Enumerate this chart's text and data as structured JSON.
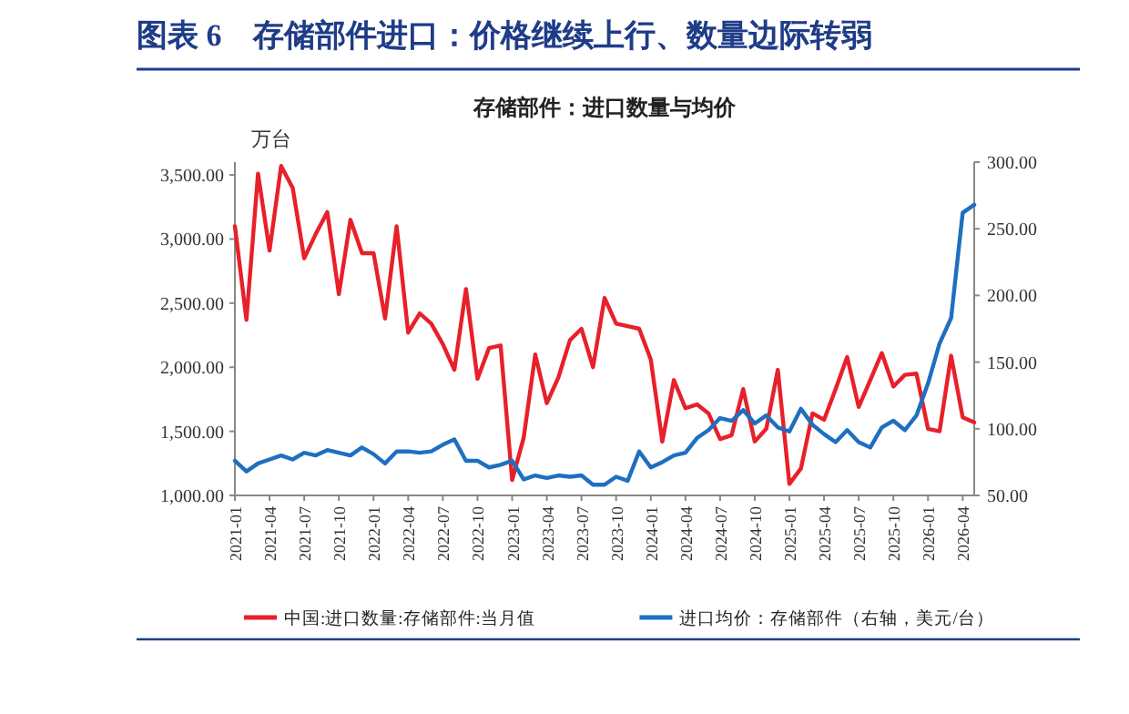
{
  "chart_data": {
    "type": "line",
    "title": "图表 6　存储部件进口：价格继续上行、数量边际转弱",
    "subtitle": "存储部件：进口数量与均价",
    "ylabel": "万台",
    "x": [
      "2021-01",
      "2021-02",
      "2021-03",
      "2021-04",
      "2021-05",
      "2021-06",
      "2021-07",
      "2021-08",
      "2021-09",
      "2021-10",
      "2021-11",
      "2021-12",
      "2022-01",
      "2022-02",
      "2022-03",
      "2022-04",
      "2022-05",
      "2022-06",
      "2022-07",
      "2022-08",
      "2022-09",
      "2022-10",
      "2022-11",
      "2022-12",
      "2023-01",
      "2023-02",
      "2023-03",
      "2023-04",
      "2023-05",
      "2023-06",
      "2023-07",
      "2023-08",
      "2023-09",
      "2023-10",
      "2023-11",
      "2023-12",
      "2024-01",
      "2024-02",
      "2024-03",
      "2024-04",
      "2024-05",
      "2024-06",
      "2024-07",
      "2024-08",
      "2024-09",
      "2024-10",
      "2024-11",
      "2024-12",
      "2025-01",
      "2025-02",
      "2025-03",
      "2025-04",
      "2025-05",
      "2025-06",
      "2025-07",
      "2025-08",
      "2025-09",
      "2025-10",
      "2025-11",
      "2025-12",
      "2026-01",
      "2026-02",
      "2026-03",
      "2026-04",
      "2026-05"
    ],
    "xlim": [
      "2021-01",
      "2026-05"
    ],
    "xticks": [
      "2021-01",
      "2021-04",
      "2021-07",
      "2021-10",
      "2022-01",
      "2022-04",
      "2022-07",
      "2022-10",
      "2023-01",
      "2023-04",
      "2023-07",
      "2023-10",
      "2024-01",
      "2024-04",
      "2024-07",
      "2024-10",
      "2025-01",
      "2025-04",
      "2025-07",
      "2025-10",
      "2026-01",
      "2026-04"
    ],
    "ylim": [
      1000,
      3600
    ],
    "yticks": [
      {
        "value": 1000,
        "label": "1,000.00"
      },
      {
        "value": 1500,
        "label": "1,500.00"
      },
      {
        "value": 2000,
        "label": "2,000.00"
      },
      {
        "value": 2500,
        "label": "2,500.00"
      },
      {
        "value": 3000,
        "label": "3,000.00"
      },
      {
        "value": 3500,
        "label": "3,500.00"
      }
    ],
    "y2lim": [
      50,
      300
    ],
    "y2ticks": [
      {
        "value": 50,
        "label": "50.00"
      },
      {
        "value": 100,
        "label": "100.00"
      },
      {
        "value": 150,
        "label": "150.00"
      },
      {
        "value": 200,
        "label": "200.00"
      },
      {
        "value": 250,
        "label": "250.00"
      },
      {
        "value": 300,
        "label": "300.00"
      }
    ],
    "legend": "bottom",
    "series": [
      {
        "name": "中国:进口数量:存储部件:当月值",
        "color": "#e8202a",
        "values": [
          3100,
          2370,
          3510,
          2910,
          3570,
          3400,
          2850,
          3040,
          3210,
          2570,
          3150,
          2890,
          2890,
          2380,
          3100,
          2270,
          2420,
          2340,
          2180,
          1980,
          2610,
          1910,
          2150,
          2170,
          1120,
          1450,
          2100,
          1720,
          1920,
          2210,
          2300,
          2000,
          2540,
          2340,
          2320,
          2300,
          2060,
          1420,
          1900,
          1680,
          1710,
          1640,
          1440,
          1470,
          1830,
          1420,
          1520,
          1980,
          1090,
          1210,
          1640,
          1590,
          1830,
          2080,
          1690,
          1900,
          2110,
          1850,
          1940,
          1950,
          1520,
          1500,
          2090,
          1610,
          1570
        ]
      },
      {
        "name": "进口均价：存储部件（右轴，美元/台）",
        "color": "#1f6fc0",
        "axis": "y2",
        "values": [
          76,
          68,
          74,
          77,
          80,
          77,
          82,
          80,
          84,
          82,
          80,
          86,
          81,
          74,
          83,
          83,
          82,
          83,
          88,
          92,
          76,
          76,
          71,
          73,
          76,
          62,
          65,
          63,
          65,
          64,
          65,
          58,
          58,
          64,
          61,
          83,
          71,
          75,
          80,
          82,
          93,
          99,
          108,
          106,
          114,
          104,
          110,
          101,
          98,
          115,
          103,
          96,
          90,
          99,
          90,
          86,
          101,
          106,
          99,
          110,
          134,
          164,
          183,
          262,
          268
        ]
      }
    ]
  }
}
